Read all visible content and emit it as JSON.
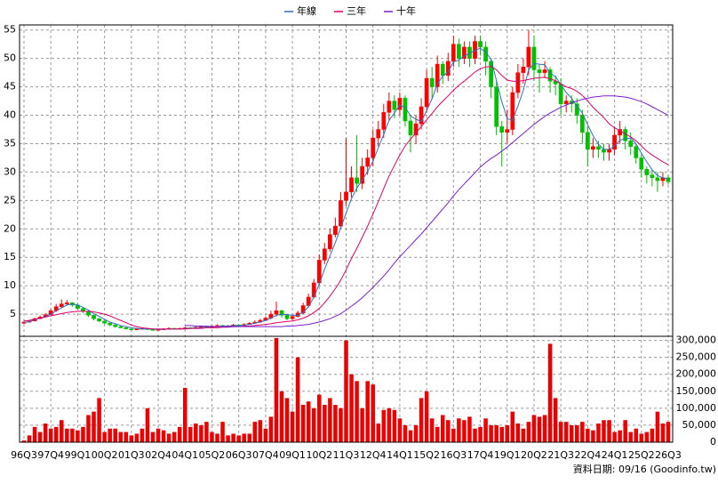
{
  "chart_data": {
    "type": "candlestick",
    "categories": [
      "96Q3",
      null,
      null,
      null,
      null,
      "97Q4",
      null,
      null,
      null,
      null,
      "99Q1",
      null,
      null,
      null,
      null,
      "00Q2",
      null,
      null,
      null,
      null,
      "01Q3",
      null,
      null,
      null,
      null,
      "02Q4",
      null,
      null,
      null,
      null,
      "04Q1",
      null,
      null,
      null,
      null,
      "05Q2",
      null,
      null,
      null,
      null,
      "06Q3",
      null,
      null,
      null,
      null,
      "07Q4",
      null,
      null,
      null,
      null,
      "09Q1",
      null,
      null,
      null,
      null,
      "10Q2",
      null,
      null,
      null,
      null,
      "11Q3",
      null,
      null,
      null,
      null,
      "12Q4",
      null,
      null,
      null,
      null,
      "14Q1",
      null,
      null,
      null,
      null,
      "15Q2",
      null,
      null,
      null,
      null,
      "16Q3",
      null,
      null,
      null,
      null,
      "17Q4",
      null,
      null,
      null,
      null,
      "19Q1",
      null,
      null,
      null,
      null,
      "20Q2",
      null,
      null,
      null,
      null,
      "21Q3",
      null,
      null,
      null,
      null,
      "22Q4",
      null,
      null,
      null,
      null,
      "24Q1",
      null,
      null,
      null,
      null,
      "25Q2",
      null,
      null,
      null,
      null,
      "26Q3"
    ],
    "open": [
      3.4,
      3.6,
      3.8,
      4.2,
      4.5,
      4.9,
      5.6,
      6.3,
      6.8,
      7.0,
      6.6,
      6.0,
      5.5,
      4.8,
      4.2,
      3.8,
      3.4,
      3.1,
      2.8,
      2.6,
      2.4,
      2.3,
      2.4,
      2.5,
      2.3,
      2.2,
      2.3,
      2.4,
      2.5,
      2.4,
      2.5,
      2.6,
      2.5,
      2.7,
      2.8,
      2.7,
      2.9,
      3.0,
      2.8,
      2.9,
      3.1,
      3.0,
      3.2,
      3.4,
      3.6,
      3.9,
      4.3,
      5.0,
      5.6,
      4.8,
      4.2,
      4.6,
      5.2,
      6.5,
      8.0,
      10.5,
      14.5,
      16.5,
      19.0,
      20.5,
      25.0,
      26.5,
      29.0,
      28.0,
      31.0,
      32.5,
      36.0,
      37.5,
      40.5,
      42.5,
      41.0,
      43.0,
      39.0,
      36.5,
      38.5,
      41.5,
      46.5,
      45.0,
      49.0,
      47.0,
      49.5,
      52.5,
      50.0,
      52.0,
      50.0,
      53.0,
      52.0,
      49.5,
      45.0,
      38.0,
      37.0,
      37.5,
      44.0,
      47.5,
      48.5,
      52.0,
      48.0,
      47.5,
      48.0,
      46.0,
      45.5,
      42.0,
      42.5,
      42.0,
      40.0,
      37.0,
      34.0,
      34.5,
      34.0,
      33.5,
      34.0,
      36.5,
      37.5,
      35.5,
      34.5,
      32.5,
      30.5,
      29.5,
      29.0,
      28.5,
      29.0
    ],
    "high": [
      3.8,
      4.0,
      4.4,
      4.8,
      5.2,
      5.9,
      6.8,
      7.6,
      7.5,
      7.1,
      6.8,
      6.2,
      5.6,
      4.9,
      4.3,
      3.9,
      3.5,
      3.2,
      2.9,
      2.7,
      2.5,
      2.5,
      2.6,
      2.6,
      2.4,
      2.4,
      2.5,
      2.7,
      2.6,
      2.6,
      2.8,
      2.7,
      2.8,
      3.0,
      2.9,
      3.0,
      3.2,
      3.1,
      3.1,
      3.3,
      3.2,
      3.4,
      3.6,
      3.9,
      4.2,
      4.6,
      5.6,
      7.2,
      5.8,
      5.0,
      4.9,
      5.6,
      7.0,
      8.6,
      11.2,
      15.5,
      17.5,
      20.0,
      22.0,
      26.5,
      36.0,
      31.0,
      36.5,
      32.5,
      34.0,
      37.5,
      39.0,
      42.0,
      44.0,
      43.5,
      44.0,
      43.5,
      40.0,
      40.0,
      43.0,
      48.0,
      48.5,
      50.5,
      49.5,
      51.0,
      54.0,
      53.5,
      53.0,
      53.0,
      54.0,
      54.0,
      53.0,
      50.0,
      46.0,
      39.0,
      41.0,
      45.0,
      49.0,
      50.0,
      55.0,
      54.0,
      49.0,
      49.5,
      48.5,
      47.0,
      46.5,
      43.5,
      43.5,
      43.0,
      41.0,
      38.0,
      36.0,
      35.5,
      35.0,
      35.0,
      38.0,
      39.0,
      38.0,
      37.0,
      35.0,
      33.0,
      31.0,
      30.5,
      30.0,
      30.0,
      29.5
    ],
    "low": [
      3.3,
      3.5,
      3.7,
      4.1,
      4.4,
      4.8,
      5.4,
      6.1,
      6.5,
      6.3,
      5.8,
      5.2,
      4.5,
      3.9,
      3.6,
      3.2,
      2.9,
      2.6,
      2.5,
      2.3,
      2.1,
      2.2,
      2.3,
      2.2,
      2.1,
      2.1,
      2.2,
      2.3,
      2.3,
      2.3,
      2.4,
      2.4,
      2.4,
      2.6,
      2.6,
      2.6,
      2.8,
      2.7,
      2.7,
      2.8,
      2.9,
      2.9,
      3.1,
      3.3,
      3.5,
      3.8,
      4.1,
      4.6,
      4.4,
      3.9,
      4.0,
      4.4,
      5.0,
      6.2,
      7.8,
      10.0,
      13.8,
      16.0,
      18.5,
      20.0,
      24.0,
      25.5,
      26.5,
      27.0,
      29.5,
      31.0,
      34.5,
      36.0,
      39.0,
      39.5,
      40.0,
      38.0,
      33.5,
      35.0,
      37.5,
      40.5,
      43.0,
      44.0,
      45.5,
      46.0,
      48.5,
      48.5,
      49.0,
      48.5,
      49.0,
      50.5,
      47.0,
      43.0,
      36.5,
      31.0,
      35.0,
      36.5,
      43.0,
      45.5,
      47.0,
      46.0,
      44.0,
      46.5,
      44.0,
      43.5,
      40.0,
      40.5,
      40.5,
      38.5,
      35.0,
      31.0,
      32.5,
      32.5,
      32.0,
      32.0,
      33.0,
      35.0,
      34.0,
      33.0,
      31.5,
      29.0,
      28.0,
      27.5,
      26.5,
      27.5,
      27.8
    ],
    "close": [
      3.6,
      3.8,
      4.2,
      4.5,
      4.9,
      5.6,
      6.3,
      6.8,
      7.0,
      6.6,
      6.0,
      5.5,
      4.8,
      4.2,
      3.8,
      3.4,
      3.1,
      2.8,
      2.6,
      2.4,
      2.3,
      2.4,
      2.5,
      2.3,
      2.2,
      2.3,
      2.4,
      2.5,
      2.4,
      2.5,
      2.6,
      2.5,
      2.7,
      2.8,
      2.7,
      2.9,
      3.0,
      2.8,
      2.9,
      3.1,
      3.0,
      3.2,
      3.4,
      3.6,
      3.9,
      4.3,
      5.0,
      5.6,
      4.8,
      4.2,
      4.6,
      5.2,
      6.5,
      8.0,
      10.5,
      14.5,
      16.5,
      19.0,
      20.5,
      25.0,
      26.5,
      29.0,
      28.0,
      31.0,
      32.5,
      36.0,
      37.5,
      40.5,
      42.5,
      41.0,
      43.0,
      39.0,
      36.5,
      38.5,
      41.5,
      46.5,
      45.0,
      49.0,
      47.0,
      49.5,
      52.5,
      50.0,
      52.0,
      50.0,
      53.0,
      52.0,
      49.5,
      45.0,
      38.0,
      37.0,
      37.5,
      44.0,
      47.5,
      48.5,
      52.0,
      48.0,
      47.5,
      48.0,
      46.0,
      45.5,
      42.0,
      42.5,
      42.0,
      40.0,
      37.0,
      34.0,
      34.5,
      34.0,
      33.5,
      34.0,
      36.5,
      37.5,
      35.5,
      34.5,
      32.5,
      30.5,
      29.5,
      29.0,
      28.5,
      29.0,
      28.3
    ],
    "up_color": "#ff0000",
    "down_color": "#00c000",
    "ylim": [
      1.1,
      55.9
    ],
    "yticks": [
      5,
      10,
      15,
      20,
      25,
      30,
      35,
      40,
      45,
      50,
      55
    ],
    "grid": true,
    "legend": "top",
    "lines": [
      {
        "name": "年線",
        "color": "#3070c0",
        "values": [
          3.5,
          3.7,
          4.0,
          4.3,
          4.6,
          5.0,
          5.6,
          6.1,
          6.6,
          6.8,
          6.6,
          6.2,
          5.7,
          5.1,
          4.6,
          4.1,
          3.6,
          3.3,
          3.0,
          2.8,
          2.6,
          2.5,
          2.4,
          2.4,
          2.4,
          2.3,
          2.3,
          2.4,
          2.4,
          2.4,
          2.5,
          2.5,
          2.6,
          2.6,
          2.7,
          2.8,
          2.8,
          2.9,
          2.9,
          3.0,
          3.0,
          3.1,
          3.2,
          3.4,
          3.6,
          3.9,
          4.3,
          4.8,
          5.0,
          4.9,
          4.8,
          4.8,
          5.3,
          6.3,
          8.0,
          10.3,
          12.9,
          15.3,
          17.6,
          20.2,
          22.8,
          25.3,
          27.2,
          28.6,
          30.1,
          31.9,
          34.3,
          36.6,
          39.1,
          40.4,
          41.8,
          41.4,
          39.9,
          39.3,
          38.9,
          40.8,
          42.9,
          45.5,
          46.9,
          47.6,
          49.4,
          49.7,
          50.4,
          50.9,
          51.4,
          51.8,
          51.1,
          49.9,
          46.1,
          42.4,
          39.4,
          39.1,
          41.6,
          44.4,
          48.0,
          49.1,
          49.0,
          48.9,
          47.4,
          46.8,
          45.4,
          44.0,
          43.0,
          41.6,
          40.4,
          38.3,
          36.4,
          34.9,
          34.0,
          34.0,
          34.6,
          35.6,
          35.9,
          36.0,
          35.0,
          33.3,
          31.8,
          30.4,
          29.4,
          29.0,
          28.8
        ]
      },
      {
        "name": "三年",
        "color": "#e0006a",
        "values": [
          3.8,
          3.9,
          4.1,
          4.3,
          4.5,
          4.7,
          4.9,
          5.1,
          5.3,
          5.4,
          5.5,
          5.5,
          5.5,
          5.4,
          5.2,
          5.0,
          4.7,
          4.3,
          3.9,
          3.5,
          3.1,
          2.8,
          2.6,
          2.5,
          2.4,
          2.4,
          2.4,
          2.4,
          2.4,
          2.4,
          2.4,
          2.5,
          2.5,
          2.5,
          2.6,
          2.6,
          2.6,
          2.7,
          2.7,
          2.8,
          2.8,
          2.9,
          2.9,
          3.0,
          3.1,
          3.2,
          3.3,
          3.5,
          3.6,
          3.7,
          3.8,
          4.0,
          4.3,
          4.7,
          5.3,
          6.0,
          7.0,
          8.2,
          9.5,
          11.0,
          12.8,
          14.8,
          16.6,
          18.5,
          20.5,
          22.6,
          24.8,
          27.1,
          29.3,
          31.2,
          33.0,
          34.6,
          35.8,
          36.9,
          38.0,
          39.2,
          40.3,
          41.5,
          42.5,
          43.4,
          44.4,
          45.3,
          46.0,
          46.8,
          47.6,
          48.2,
          48.5,
          48.6,
          48.0,
          47.0,
          46.2,
          46.0,
          46.0,
          46.1,
          46.3,
          46.5,
          46.6,
          46.7,
          46.4,
          46.1,
          45.5,
          45.0,
          44.7,
          44.2,
          43.5,
          42.5,
          41.4,
          40.5,
          39.6,
          38.5,
          37.8,
          37.3,
          36.7,
          36.2,
          35.5,
          34.6,
          33.7,
          33.0,
          32.4,
          31.8,
          31.3
        ]
      },
      {
        "name": "十年",
        "color": "#7a1fd0",
        "values": [
          null,
          null,
          null,
          null,
          null,
          null,
          null,
          null,
          null,
          null,
          null,
          null,
          null,
          null,
          null,
          null,
          null,
          null,
          null,
          null,
          null,
          null,
          null,
          null,
          null,
          null,
          null,
          null,
          null,
          null,
          3.0,
          3.0,
          2.9,
          2.9,
          2.9,
          2.8,
          2.8,
          2.8,
          2.8,
          2.8,
          2.8,
          2.8,
          2.8,
          2.8,
          2.8,
          2.8,
          2.8,
          2.8,
          2.8,
          2.9,
          2.9,
          3.0,
          3.1,
          3.2,
          3.4,
          3.6,
          3.9,
          4.2,
          4.6,
          5.1,
          5.7,
          6.4,
          7.1,
          7.9,
          8.8,
          9.7,
          10.7,
          11.7,
          12.8,
          14.0,
          15.1,
          16.1,
          17.1,
          18.1,
          19.1,
          20.2,
          21.3,
          22.4,
          23.5,
          24.6,
          25.8,
          26.9,
          27.9,
          28.9,
          29.9,
          30.9,
          31.7,
          32.4,
          33.0,
          33.7,
          34.4,
          35.2,
          36.0,
          36.8,
          37.6,
          38.4,
          39.1,
          39.8,
          40.4,
          40.9,
          41.4,
          41.8,
          42.2,
          42.5,
          42.8,
          43.0,
          43.2,
          43.3,
          43.4,
          43.4,
          43.4,
          43.3,
          43.2,
          43.0,
          42.7,
          42.4,
          42.0,
          41.5,
          41.0,
          40.5,
          40.0
        ]
      }
    ],
    "volume": {
      "type": "bar",
      "color": "#ee0000",
      "values": [
        5000,
        20000,
        45000,
        30000,
        55000,
        40000,
        45000,
        65000,
        40000,
        40000,
        35000,
        45000,
        80000,
        90000,
        130000,
        30000,
        40000,
        40000,
        30000,
        30000,
        20000,
        25000,
        40000,
        100000,
        30000,
        40000,
        35000,
        25000,
        30000,
        45000,
        160000,
        45000,
        55000,
        50000,
        60000,
        30000,
        25000,
        60000,
        20000,
        25000,
        20000,
        25000,
        25000,
        60000,
        65000,
        40000,
        75000,
        307000,
        150000,
        130000,
        90000,
        250000,
        110000,
        120000,
        100000,
        140000,
        110000,
        130000,
        110000,
        100000,
        300000,
        200000,
        180000,
        100000,
        180000,
        170000,
        55000,
        95000,
        100000,
        95000,
        70000,
        50000,
        35000,
        50000,
        130000,
        150000,
        70000,
        45000,
        80000,
        65000,
        40000,
        70000,
        65000,
        75000,
        40000,
        45000,
        70000,
        50000,
        50000,
        45000,
        50000,
        90000,
        55000,
        40000,
        60000,
        80000,
        75000,
        80000,
        290000,
        130000,
        60000,
        60000,
        50000,
        50000,
        60000,
        40000,
        35000,
        55000,
        65000,
        65000,
        30000,
        35000,
        65000,
        30000,
        40000,
        25000,
        30000,
        40000,
        90000,
        55000,
        60000
      ],
      "ylim": [
        0,
        312000
      ],
      "yticks": [
        0,
        {
          "value": 50000,
          "label": "50,000"
        },
        {
          "value": 100000,
          "label": "100,000"
        },
        {
          "value": 150000,
          "label": "150,000"
        },
        {
          "value": 200000,
          "label": "200,000"
        },
        {
          "value": 250000,
          "label": "250,000"
        },
        {
          "value": 300000,
          "label": "300,000"
        }
      ]
    },
    "source": "資料日期: 09/16 (Goodinfo.tw)"
  }
}
